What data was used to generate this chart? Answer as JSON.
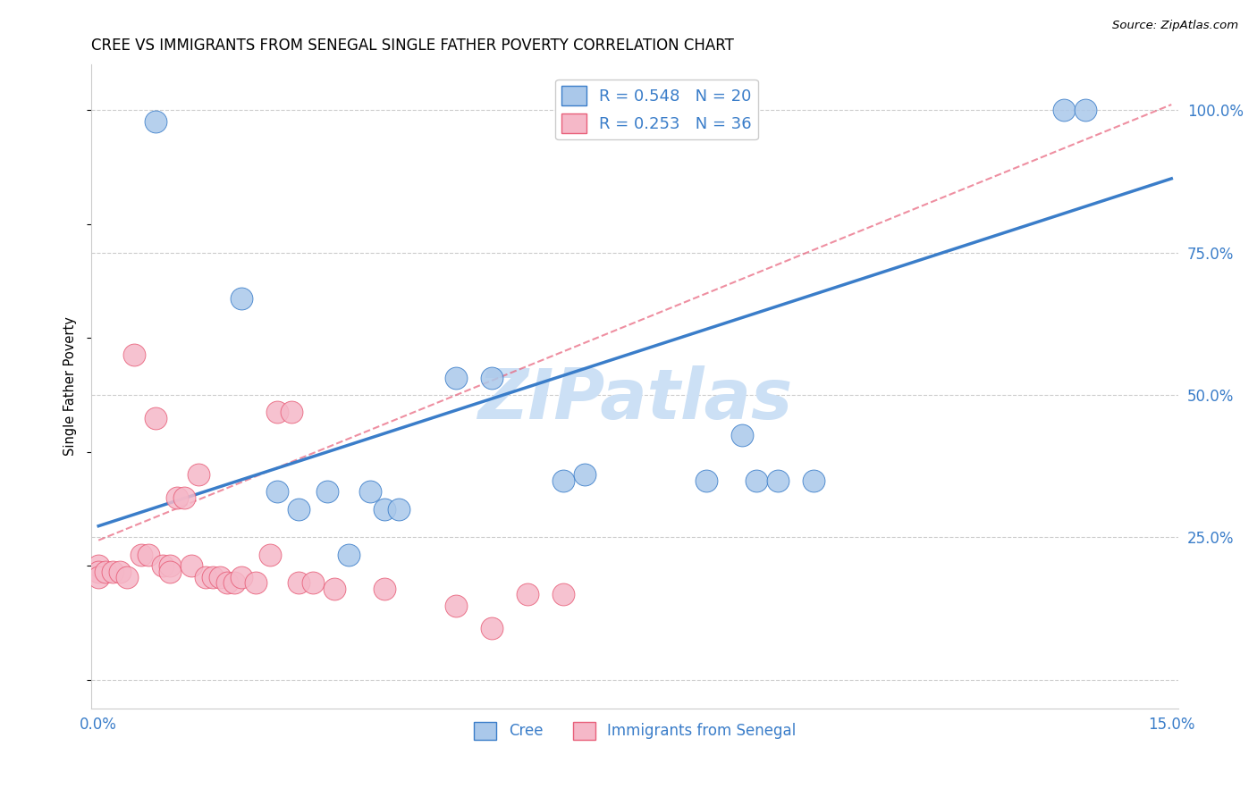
{
  "title": "CREE VS IMMIGRANTS FROM SENEGAL SINGLE FATHER POVERTY CORRELATION CHART",
  "source": "Source: ZipAtlas.com",
  "ylabel_label": "Single Father Poverty",
  "xlim": [
    -0.001,
    0.151
  ],
  "ylim": [
    -0.05,
    1.08
  ],
  "xticks": [
    0.0,
    0.03,
    0.06,
    0.09,
    0.12,
    0.15
  ],
  "xtick_labels": [
    "0.0%",
    "",
    "",
    "",
    "",
    "15.0%"
  ],
  "yticks_right": [
    0.0,
    0.25,
    0.5,
    0.75,
    1.0
  ],
  "ytick_labels_right": [
    "",
    "25.0%",
    "50.0%",
    "75.0%",
    "100.0%"
  ],
  "grid_color": "#cccccc",
  "background_color": "#ffffff",
  "cree_color": "#aac8ea",
  "senegal_color": "#f5b8c8",
  "cree_line_color": "#3a7dc9",
  "senegal_line_color": "#e8607a",
  "R_cree": 0.548,
  "N_cree": 20,
  "R_senegal": 0.253,
  "N_senegal": 36,
  "watermark": "ZIPatlas",
  "watermark_color": "#cce0f5",
  "cree_x": [
    0.008,
    0.02,
    0.025,
    0.028,
    0.032,
    0.035,
    0.038,
    0.04,
    0.042,
    0.05,
    0.055,
    0.065,
    0.068,
    0.085,
    0.09,
    0.092,
    0.095,
    0.1,
    0.135,
    0.138
  ],
  "cree_y": [
    0.98,
    0.67,
    0.33,
    0.3,
    0.33,
    0.22,
    0.33,
    0.3,
    0.3,
    0.53,
    0.53,
    0.35,
    0.36,
    0.35,
    0.43,
    0.35,
    0.35,
    0.35,
    1.0,
    1.0
  ],
  "senegal_x": [
    0.0,
    0.0,
    0.0,
    0.001,
    0.002,
    0.003,
    0.004,
    0.005,
    0.006,
    0.007,
    0.008,
    0.009,
    0.01,
    0.01,
    0.011,
    0.012,
    0.013,
    0.014,
    0.015,
    0.016,
    0.017,
    0.018,
    0.019,
    0.02,
    0.022,
    0.024,
    0.025,
    0.027,
    0.028,
    0.03,
    0.033,
    0.04,
    0.05,
    0.055,
    0.06,
    0.065
  ],
  "senegal_y": [
    0.2,
    0.19,
    0.18,
    0.19,
    0.19,
    0.19,
    0.18,
    0.57,
    0.22,
    0.22,
    0.46,
    0.2,
    0.2,
    0.19,
    0.32,
    0.32,
    0.2,
    0.36,
    0.18,
    0.18,
    0.18,
    0.17,
    0.17,
    0.18,
    0.17,
    0.22,
    0.47,
    0.47,
    0.17,
    0.17,
    0.16,
    0.16,
    0.13,
    0.09,
    0.15,
    0.15
  ],
  "cree_line_x": [
    0.0,
    0.15
  ],
  "cree_line_y": [
    0.27,
    0.88
  ],
  "senegal_line_x": [
    0.0,
    0.15
  ],
  "senegal_line_y": [
    0.245,
    1.01
  ],
  "legend_fontsize": 13,
  "title_fontsize": 12,
  "axis_label_color": "#3a7dc9",
  "tick_label_color": "#3a7dc9"
}
